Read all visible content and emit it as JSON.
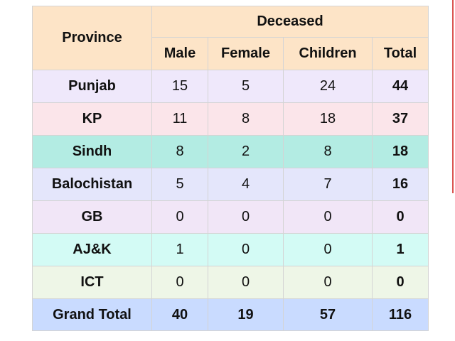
{
  "colors": {
    "header_bg": "#fde4c7",
    "grand_total_bg": "#c9dbff",
    "border": "#d4d4d4",
    "edge_line": "#d9534f"
  },
  "table": {
    "headers": {
      "province": "Province",
      "group": "Deceased",
      "columns": [
        "Male",
        "Female",
        "Children",
        "Total"
      ]
    },
    "rows": [
      {
        "province": "Punjab",
        "male": "15",
        "female": "5",
        "children": "24",
        "total": "44",
        "bg": "#efe8fb"
      },
      {
        "province": "KP",
        "male": "11",
        "female": "8",
        "children": "18",
        "total": "37",
        "bg": "#fbe5ea"
      },
      {
        "province": "Sindh",
        "male": "8",
        "female": "2",
        "children": "8",
        "total": "18",
        "bg": "#b3ece3"
      },
      {
        "province": "Balochistan",
        "male": "5",
        "female": "4",
        "children": "7",
        "total": "16",
        "bg": "#e4e6fb"
      },
      {
        "province": "GB",
        "male": "0",
        "female": "0",
        "children": "0",
        "total": "0",
        "bg": "#f1e6f7"
      },
      {
        "province": "AJ&K",
        "male": "1",
        "female": "0",
        "children": "0",
        "total": "1",
        "bg": "#d3fbf5"
      },
      {
        "province": "ICT",
        "male": "0",
        "female": "0",
        "children": "0",
        "total": "0",
        "bg": "#eef6e7"
      }
    ],
    "grand_total": {
      "label": "Grand Total",
      "male": "40",
      "female": "19",
      "children": "57",
      "total": "116"
    }
  }
}
